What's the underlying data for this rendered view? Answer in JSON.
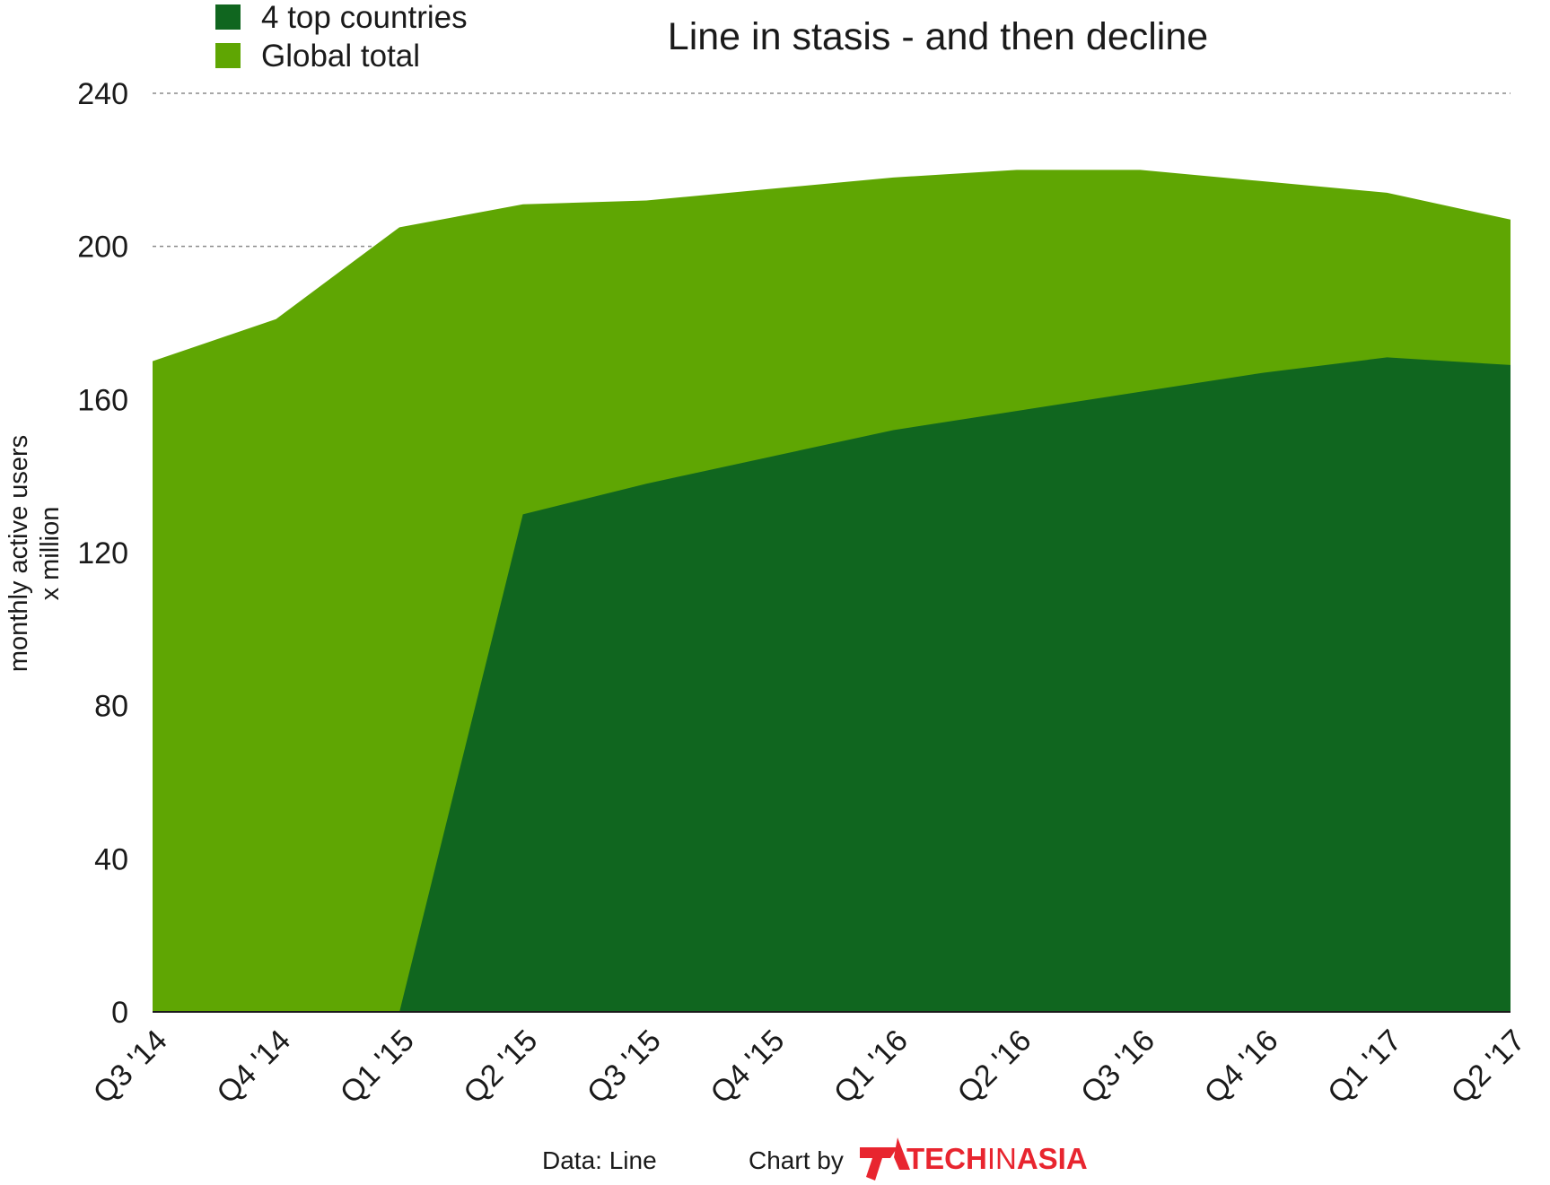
{
  "chart_data": {
    "type": "area",
    "title": "Line in stasis - and then decline",
    "ylabel_line1": "monthly active users",
    "ylabel_line2": "x million",
    "xlabel": "",
    "ylim": [
      0,
      240
    ],
    "yticks": [
      0,
      40,
      80,
      120,
      160,
      200,
      240
    ],
    "categories": [
      "Q3 '14",
      "Q4 '14",
      "Q1 '15",
      "Q2 '15",
      "Q3 '15",
      "Q4 '15",
      "Q1 '16",
      "Q2 '16",
      "Q3 '16",
      "Q4 '16",
      "Q1 '17",
      "Q2 '17"
    ],
    "series": [
      {
        "name": "4 top countries",
        "color": "#10661f",
        "values": [
          0,
          0,
          0,
          130,
          138,
          145,
          152,
          157,
          162,
          167,
          171,
          169
        ]
      },
      {
        "name": "Global total",
        "color": "#5fa603",
        "values": [
          170,
          181,
          205,
          211,
          212,
          215,
          218,
          220,
          220,
          217,
          214,
          207
        ]
      }
    ],
    "legend_position": "top-left",
    "grid": "dashed horizontal at 200 and 240"
  },
  "footer": {
    "data_source": "Data: Line",
    "chart_by": "Chart by",
    "brand_part1": "TECH",
    "brand_part2": "IN",
    "brand_part3": "ASIA",
    "brand_color": "#e8252f"
  }
}
